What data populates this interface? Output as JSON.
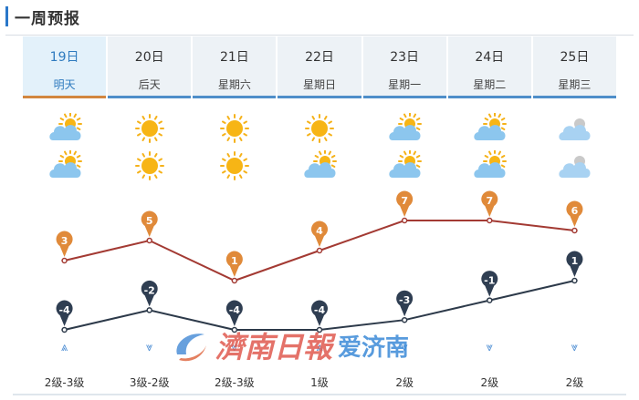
{
  "header": {
    "title": "一周预报"
  },
  "days": [
    {
      "date": "19日",
      "weekday": "明天",
      "active": true,
      "icon_day": "partly-cloudy-icon",
      "icon_night": "partly-cloudy-icon",
      "high": "3",
      "low": "-4",
      "wind_dir": "up",
      "wind_level": "2级-3级"
    },
    {
      "date": "20日",
      "weekday": "后天",
      "active": false,
      "icon_day": "sunny-icon",
      "icon_night": "sunny-icon",
      "high": "5",
      "low": "-2",
      "wind_dir": "down",
      "wind_level": "3级-2级"
    },
    {
      "date": "21日",
      "weekday": "星期六",
      "active": false,
      "icon_day": "sunny-icon",
      "icon_night": "sunny-icon",
      "high": "1",
      "low": "-4",
      "wind_dir": "down",
      "wind_level": "2级-3级"
    },
    {
      "date": "22日",
      "weekday": "星期日",
      "active": false,
      "icon_day": "sunny-icon",
      "icon_night": "partly-cloudy-icon",
      "high": "4",
      "low": "-4",
      "wind_dir": "up",
      "wind_level": "1级"
    },
    {
      "date": "23日",
      "weekday": "星期一",
      "active": false,
      "icon_day": "partly-cloudy-icon",
      "icon_night": "partly-cloudy-icon",
      "high": "7",
      "low": "-3",
      "wind_dir": "down",
      "wind_level": "2级"
    },
    {
      "date": "24日",
      "weekday": "星期二",
      "active": false,
      "icon_day": "partly-cloudy-icon",
      "icon_night": "partly-cloudy-icon",
      "high": "7",
      "low": "-1",
      "wind_dir": "down",
      "wind_level": "2级"
    },
    {
      "date": "25日",
      "weekday": "星期三",
      "active": false,
      "icon_day": "cloudy-icon",
      "icon_night": "cloudy-icon",
      "high": "6",
      "low": "1",
      "wind_dir": "down",
      "wind_level": "2级"
    }
  ],
  "colors": {
    "high_line": "#a33a33",
    "low_line": "#2d3a4a",
    "high_pin": "#e08a3a",
    "low_pin": "#2f3e52",
    "accent": "#2a77c9"
  },
  "watermark": {
    "text1": "濟南日報",
    "text2": "爱济南"
  }
}
